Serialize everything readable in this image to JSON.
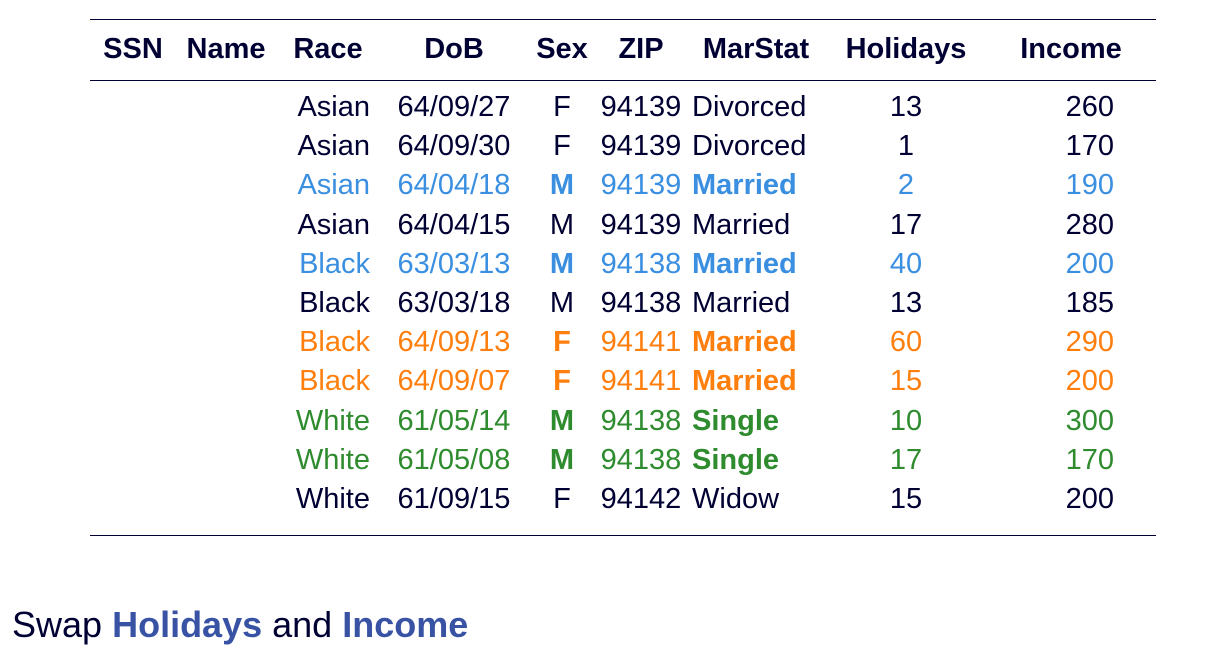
{
  "colors": {
    "text": "#000033",
    "blue": "#3a8fe0",
    "orange": "#ff7f0e",
    "green": "#2e8b2e",
    "caption_keyword": "#3852a4"
  },
  "table": {
    "headers": [
      "SSN",
      "Name",
      "Race",
      "DoB",
      "Sex",
      "ZIP",
      "MarStat",
      "Holidays",
      "Income"
    ],
    "rows": [
      {
        "group": "none",
        "cells": [
          "",
          "",
          "Asian",
          "64/09/27",
          "F",
          "94139",
          "Divorced",
          "13",
          "260"
        ]
      },
      {
        "group": "none",
        "cells": [
          "",
          "",
          "Asian",
          "64/09/30",
          "F",
          "94139",
          "Divorced",
          "1",
          "170"
        ]
      },
      {
        "group": "blue",
        "cells": [
          "",
          "",
          "Asian",
          "64/04/18",
          "M",
          "94139",
          "Married",
          "2",
          "190"
        ]
      },
      {
        "group": "none",
        "cells": [
          "",
          "",
          "Asian",
          "64/04/15",
          "M",
          "94139",
          "Married",
          "17",
          "280"
        ]
      },
      {
        "group": "blue",
        "cells": [
          "",
          "",
          "Black",
          "63/03/13",
          "M",
          "94138",
          "Married",
          "40",
          "200"
        ]
      },
      {
        "group": "none",
        "cells": [
          "",
          "",
          "Black",
          "63/03/18",
          "M",
          "94138",
          "Married",
          "13",
          "185"
        ]
      },
      {
        "group": "orange",
        "cells": [
          "",
          "",
          "Black",
          "64/09/13",
          "F",
          "94141",
          "Married",
          "60",
          "290"
        ]
      },
      {
        "group": "orange",
        "cells": [
          "",
          "",
          "Black",
          "64/09/07",
          "F",
          "94141",
          "Married",
          "15",
          "200"
        ]
      },
      {
        "group": "green",
        "cells": [
          "",
          "",
          "White",
          "61/05/14",
          "M",
          "94138",
          "Single",
          "10",
          "300"
        ]
      },
      {
        "group": "green",
        "cells": [
          "",
          "",
          "White",
          "61/05/08",
          "M",
          "94138",
          "Single",
          "17",
          "170"
        ]
      },
      {
        "group": "none",
        "cells": [
          "",
          "",
          "White",
          "61/09/15",
          "F",
          "94142",
          "Widow",
          "15",
          "200"
        ]
      }
    ]
  },
  "caption": {
    "prefix": "Swap",
    "first": "Holidays",
    "middle": "and",
    "second": "Income"
  }
}
